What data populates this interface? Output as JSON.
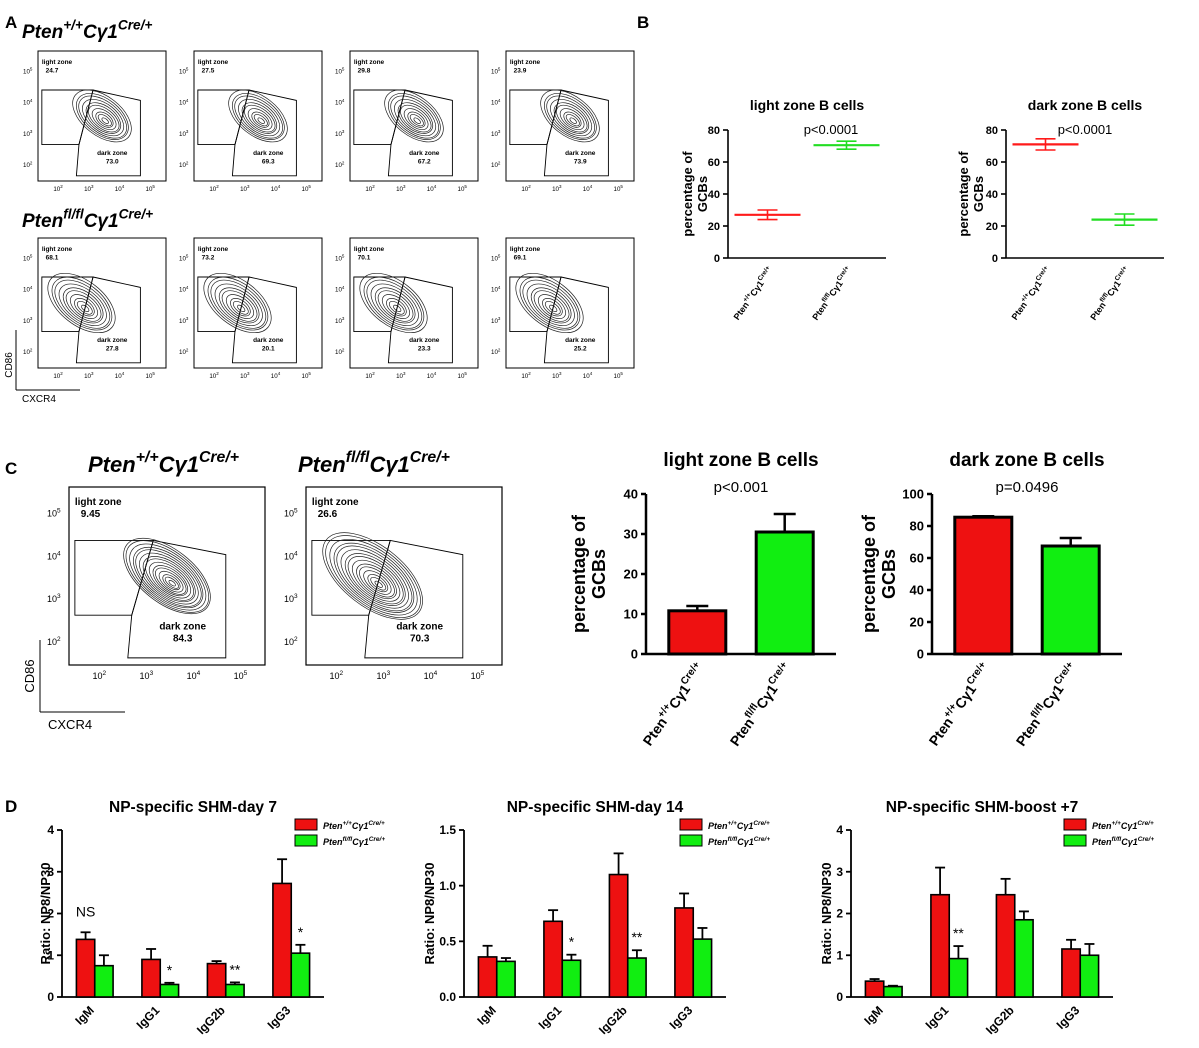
{
  "panels": {
    "A": "A",
    "B": "B",
    "C": "C",
    "D": "D"
  },
  "genotypes": {
    "wt": {
      "base": "Pten",
      "sup1": "+/+",
      "mid": "Cγ1",
      "sup2": "Cre/+"
    },
    "ko": {
      "base": "Pten",
      "sup1": "fl/fl",
      "mid": "Cγ1",
      "sup2": "Cre/+"
    }
  },
  "flow": {
    "x_axis": "CXCR4",
    "y_axis": "CD86",
    "gate_light": "light zone",
    "gate_dark": "dark zone",
    "tick_labels": [
      "10",
      "10",
      "10",
      "10"
    ],
    "tick_exps": [
      "2",
      "3",
      "4",
      "5"
    ],
    "A": {
      "wt": [
        {
          "light": "24.7",
          "dark": "73.0"
        },
        {
          "light": "27.5",
          "dark": "69.3"
        },
        {
          "light": "29.8",
          "dark": "67.2"
        },
        {
          "light": "23.9",
          "dark": "73.9"
        }
      ],
      "ko": [
        {
          "light": "68.1",
          "dark": "27.8"
        },
        {
          "light": "73.2",
          "dark": "20.1"
        },
        {
          "light": "70.1",
          "dark": "23.3"
        },
        {
          "light": "69.1",
          "dark": "25.2"
        }
      ]
    },
    "C": {
      "wt": {
        "light": "9.45",
        "dark": "84.3"
      },
      "ko": {
        "light": "26.6",
        "dark": "70.3"
      }
    }
  },
  "chart_data": [
    {
      "id": "B-light",
      "type": "scatter",
      "title": "light zone B cells",
      "annotation": "p<0.0001",
      "ylabel": "percentage of GCBs",
      "ylim": [
        0,
        80
      ],
      "yticks": [
        "0",
        "20",
        "40",
        "60",
        "80"
      ],
      "categories": [
        "Pten+/+Cγ1Cre/+",
        "Ptenfl/flCγ1Cre/+"
      ],
      "values": [
        27,
        70.5
      ],
      "errors": [
        3,
        2.5
      ],
      "colors": [
        "#ff1a1a",
        "#22dd22"
      ]
    },
    {
      "id": "B-dark",
      "type": "scatter",
      "title": "dark zone B cells",
      "annotation": "p<0.0001",
      "ylabel": "percentage of GCBs",
      "ylim": [
        0,
        80
      ],
      "yticks": [
        "0",
        "20",
        "40",
        "60",
        "80"
      ],
      "categories": [
        "Pten+/+Cγ1Cre/+",
        "Ptenfl/flCγ1Cre/+"
      ],
      "values": [
        71,
        24
      ],
      "errors": [
        3.5,
        3.5
      ],
      "colors": [
        "#ff1a1a",
        "#22dd22"
      ]
    },
    {
      "id": "C-light",
      "type": "bar",
      "title": "light zone B cells",
      "annotation": "p<0.001",
      "ylabel": "percentage of GCBs",
      "ylim": [
        0,
        40
      ],
      "yticks": [
        "0",
        "10",
        "20",
        "30",
        "40"
      ],
      "categories": [
        "Pten+/+Cγ1Cre/+",
        "Ptenfl/flCγ1Cre/+"
      ],
      "values": [
        10.8,
        30.5
      ],
      "errors": [
        1.2,
        4.5
      ],
      "colors": [
        "#ee1111",
        "#11ee11"
      ]
    },
    {
      "id": "C-dark",
      "type": "bar",
      "title": "dark zone B cells",
      "annotation": "p=0.0496",
      "ylabel": "percentage of GCBs",
      "ylim": [
        0,
        100
      ],
      "yticks": [
        "0",
        "20",
        "40",
        "60",
        "80",
        "100"
      ],
      "categories": [
        "Pten+/+Cγ1Cre/+",
        "Ptenfl/flCγ1Cre/+"
      ],
      "values": [
        85.5,
        67.5
      ],
      "errors": [
        0.6,
        5
      ],
      "colors": [
        "#ee1111",
        "#11ee11"
      ]
    },
    {
      "id": "D-day7",
      "type": "bar",
      "title": "NP-specific SHM-day 7",
      "ylabel": "Ratio: NP8/NP30",
      "ylim": [
        0,
        4
      ],
      "yticks": [
        "0",
        "1",
        "2",
        "3",
        "4"
      ],
      "categories": [
        "IgM",
        "IgG1",
        "IgG2b",
        "IgG3"
      ],
      "series": [
        {
          "name": "Pten+/+Cγ1Cre/+",
          "color": "#ee1111",
          "values": [
            1.38,
            0.9,
            0.8,
            2.72
          ],
          "errors": [
            0.17,
            0.25,
            0.06,
            0.58
          ]
        },
        {
          "name": "Ptenfl/flCγ1Cre/+",
          "color": "#11ee11",
          "values": [
            0.75,
            0.3,
            0.3,
            1.05
          ],
          "errors": [
            0.25,
            0.04,
            0.05,
            0.2
          ]
        }
      ],
      "annotations": [
        "NS",
        "*",
        "**",
        "*"
      ]
    },
    {
      "id": "D-day14",
      "type": "bar",
      "title": "NP-specific SHM-day 14",
      "ylabel": "Ratio: NP8/NP30",
      "ylim": [
        0,
        1.5
      ],
      "yticks": [
        "0.0",
        "0.5",
        "1.0",
        "1.5"
      ],
      "categories": [
        "IgM",
        "IgG1",
        "IgG2b",
        "IgG3"
      ],
      "series": [
        {
          "name": "Pten+/+Cγ1Cre/+",
          "color": "#ee1111",
          "values": [
            0.36,
            0.68,
            1.1,
            0.8
          ],
          "errors": [
            0.1,
            0.1,
            0.19,
            0.13
          ]
        },
        {
          "name": "Ptenfl/flCγ1Cre/+",
          "color": "#11ee11",
          "values": [
            0.32,
            0.33,
            0.35,
            0.52
          ],
          "errors": [
            0.03,
            0.05,
            0.07,
            0.1
          ]
        }
      ],
      "annotations": [
        "",
        "*",
        "**",
        ""
      ]
    },
    {
      "id": "D-boost",
      "type": "bar",
      "title": "NP-specific SHM-boost +7",
      "ylabel": "Ratio: NP8/NP30",
      "ylim": [
        0,
        4
      ],
      "yticks": [
        "0",
        "1",
        "2",
        "3",
        "4"
      ],
      "categories": [
        "IgM",
        "IgG1",
        "IgG2b",
        "IgG3"
      ],
      "series": [
        {
          "name": "Pten+/+Cγ1Cre/+",
          "color": "#ee1111",
          "values": [
            0.38,
            2.45,
            2.45,
            1.15
          ],
          "errors": [
            0.05,
            0.65,
            0.38,
            0.22
          ]
        },
        {
          "name": "Ptenfl/flCγ1Cre/+",
          "color": "#11ee11",
          "values": [
            0.25,
            0.92,
            1.85,
            1.0
          ],
          "errors": [
            0.02,
            0.3,
            0.2,
            0.27
          ]
        }
      ],
      "annotations": [
        "",
        "**",
        "",
        ""
      ]
    }
  ]
}
